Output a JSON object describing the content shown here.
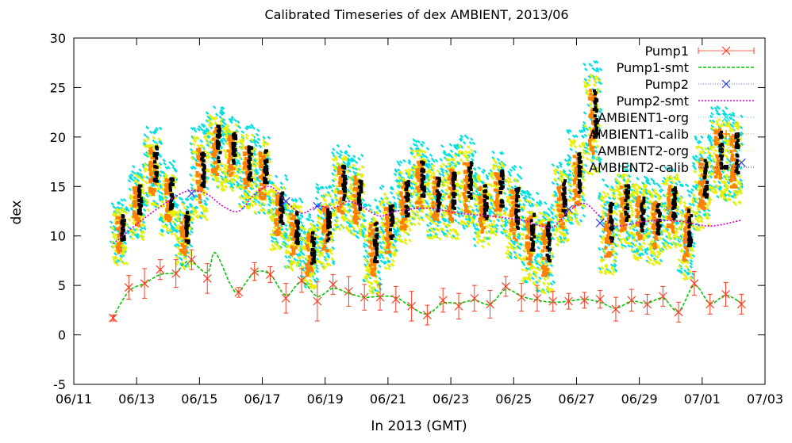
{
  "chart_data": {
    "type": "scatter",
    "title": "Calibrated Timeseries of dex AMBIENT, 2013/06",
    "xlabel": "In 2013 (GMT)",
    "ylabel": "dex",
    "xlim": [
      "2013-06-11",
      "2013-07-03"
    ],
    "ylim": [
      -5,
      30
    ],
    "yticks": [
      -5,
      0,
      5,
      10,
      15,
      20,
      25,
      30
    ],
    "xticks": [
      "06/11",
      "06/13",
      "06/15",
      "06/17",
      "06/19",
      "06/21",
      "06/23",
      "06/25",
      "06/27",
      "06/29",
      "07/01",
      "07/03"
    ],
    "legend_position": "top-right",
    "grid": false,
    "series": [
      {
        "name": "Pump1",
        "color": "#ff3b1f",
        "marker": "x",
        "style": "points-errorbars",
        "x": [
          "2013-06-12 06:00",
          "2013-06-12 18:00",
          "2013-06-13 06:00",
          "2013-06-13 18:00",
          "2013-06-14 06:00",
          "2013-06-14 18:00",
          "2013-06-15 06:00",
          "2013-06-16 06:00",
          "2013-06-16 18:00",
          "2013-06-17 06:00",
          "2013-06-17 18:00",
          "2013-06-18 06:00",
          "2013-06-18 18:00",
          "2013-06-19 06:00",
          "2013-06-19 18:00",
          "2013-06-20 06:00",
          "2013-06-20 18:00",
          "2013-06-21 06:00",
          "2013-06-21 18:00",
          "2013-06-22 06:00",
          "2013-06-22 18:00",
          "2013-06-23 06:00",
          "2013-06-23 18:00",
          "2013-06-24 06:00",
          "2013-06-24 18:00",
          "2013-06-25 06:00",
          "2013-06-25 18:00",
          "2013-06-26 06:00",
          "2013-06-26 18:00",
          "2013-06-27 06:00",
          "2013-06-27 18:00",
          "2013-06-28 06:00",
          "2013-06-28 18:00",
          "2013-06-29 06:00",
          "2013-06-29 18:00",
          "2013-06-30 06:00",
          "2013-06-30 18:00",
          "2013-07-01 06:00",
          "2013-07-01 18:00",
          "2013-07-02 06:00"
        ],
        "y": [
          1.7,
          4.8,
          5.2,
          6.6,
          6.2,
          7.6,
          5.7,
          4.3,
          6.4,
          6.1,
          3.7,
          5.5,
          3.4,
          5.1,
          4.4,
          3.8,
          3.8,
          3.6,
          2.9,
          2.0,
          3.5,
          2.9,
          3.7,
          3.1,
          4.9,
          3.8,
          3.7,
          3.4,
          3.4,
          3.5,
          3.6,
          2.6,
          3.5,
          3.1,
          3.9,
          2.3,
          5.2,
          3.1,
          4.1,
          3.1
        ],
        "yerr": [
          0.3,
          1.2,
          1.5,
          1.0,
          1.4,
          1.0,
          1.5,
          0.5,
          0.9,
          0.8,
          1.5,
          1.2,
          2.0,
          1.0,
          1.5,
          1.3,
          1.3,
          1.3,
          1.5,
          1.0,
          1.2,
          1.3,
          1.3,
          1.4,
          1.0,
          1.4,
          1.3,
          1.0,
          0.8,
          0.8,
          0.9,
          1.2,
          1.1,
          1.0,
          1.0,
          1.0,
          1.2,
          1.0,
          1.2,
          1.0
        ]
      },
      {
        "name": "Pump1-smt",
        "color": "#00c800",
        "style": "dashed-line",
        "x": [
          "2013-06-12 06:00",
          "2013-06-12 18:00",
          "2013-06-13 06:00",
          "2013-06-13 18:00",
          "2013-06-14 06:00",
          "2013-06-14 12:00",
          "2013-06-14 18:00",
          "2013-06-15 06:00",
          "2013-06-15 12:00",
          "2013-06-16 00:00",
          "2013-06-16 06:00",
          "2013-06-16 18:00",
          "2013-06-17 06:00",
          "2013-06-17 18:00",
          "2013-06-18 06:00",
          "2013-06-18 18:00",
          "2013-06-19 06:00",
          "2013-06-19 18:00",
          "2013-06-20 06:00",
          "2013-06-20 18:00",
          "2013-06-21 06:00",
          "2013-06-21 18:00",
          "2013-06-22 06:00",
          "2013-06-22 18:00",
          "2013-06-23 06:00",
          "2013-06-23 18:00",
          "2013-06-24 06:00",
          "2013-06-24 18:00",
          "2013-06-25 06:00",
          "2013-06-25 18:00",
          "2013-06-26 06:00",
          "2013-06-26 18:00",
          "2013-06-27 06:00",
          "2013-06-27 18:00",
          "2013-06-28 06:00",
          "2013-06-28 18:00",
          "2013-06-29 06:00",
          "2013-06-29 18:00",
          "2013-06-30 06:00",
          "2013-06-30 18:00",
          "2013-07-01 06:00",
          "2013-07-01 18:00",
          "2013-07-02 06:00"
        ],
        "y": [
          1.8,
          4.4,
          5.2,
          6.1,
          6.3,
          7.2,
          7.4,
          6.3,
          8.3,
          5.0,
          4.4,
          6.3,
          6.1,
          4.0,
          5.4,
          3.9,
          4.7,
          4.2,
          3.8,
          3.9,
          3.8,
          2.8,
          2.1,
          3.2,
          3.2,
          3.5,
          3.1,
          4.6,
          3.9,
          3.5,
          3.3,
          3.4,
          3.6,
          3.3,
          2.7,
          3.4,
          3.2,
          3.7,
          2.4,
          5.0,
          3.2,
          4.0,
          3.2
        ]
      },
      {
        "name": "Pump2",
        "color": "#1f3cff",
        "marker": "x",
        "style": "points",
        "x": [
          "2013-06-14 18:00",
          "2013-06-17 18:00",
          "2013-06-18 18:00",
          "2013-06-26 18:00",
          "2013-06-27 18:00",
          "2013-07-02 06:00"
        ],
        "y": [
          14.3,
          13.5,
          13.0,
          12.7,
          11.3,
          17.4
        ]
      },
      {
        "name": "Pump2-smt",
        "color": "#d400d4",
        "style": "dotted-line",
        "x": [
          "2013-06-12 06:00",
          "2013-06-13 06:00",
          "2013-06-14 06:00",
          "2013-06-14 18:00",
          "2013-06-15 06:00",
          "2013-06-15 18:00",
          "2013-06-16 06:00",
          "2013-06-16 18:00",
          "2013-06-17 06:00",
          "2013-06-17 18:00",
          "2013-06-18 06:00",
          "2013-06-18 18:00",
          "2013-06-19 06:00",
          "2013-06-19 18:00",
          "2013-06-20 06:00",
          "2013-06-20 18:00",
          "2013-06-21 06:00",
          "2013-06-22 06:00",
          "2013-06-23 06:00",
          "2013-06-24 06:00",
          "2013-06-25 06:00",
          "2013-06-25 18:00",
          "2013-06-26 06:00",
          "2013-06-26 18:00",
          "2013-06-27 06:00",
          "2013-06-27 18:00",
          "2013-06-28 06:00",
          "2013-06-29 06:00",
          "2013-06-30 06:00",
          "2013-07-01 06:00",
          "2013-07-02 06:00"
        ],
        "y": [
          9.2,
          11.8,
          14.0,
          14.6,
          14.2,
          13.0,
          12.5,
          14.2,
          15.0,
          13.5,
          12.3,
          13.0,
          12.8,
          13.5,
          12.8,
          12.0,
          12.5,
          12.8,
          12.3,
          12.0,
          11.6,
          11.1,
          10.9,
          12.5,
          13.3,
          12.0,
          11.0,
          11.5,
          11.5,
          11.0,
          11.6
        ]
      },
      {
        "name": "AMBIENT1-org",
        "color": "#00e0e0",
        "marker": "x",
        "style": "points"
      },
      {
        "name": "AMBIENT1-calib",
        "color": "#ff8000",
        "marker": "+",
        "style": "points"
      },
      {
        "name": "AMBIENT2-org",
        "color": "#e8f000",
        "marker": "x",
        "style": "points"
      },
      {
        "name": "AMBIENT2-calib",
        "color": "#000000",
        "marker": "square",
        "style": "points"
      }
    ],
    "ambient_clusters": {
      "x": [
        "2013-06-12 11:00",
        "2013-06-13 00:00",
        "2013-06-13 12:00",
        "2013-06-14 00:00",
        "2013-06-14 12:00",
        "2013-06-15 00:00",
        "2013-06-15 12:00",
        "2013-06-16 00:00",
        "2013-06-16 12:00",
        "2013-06-17 00:00",
        "2013-06-17 12:00",
        "2013-06-18 00:00",
        "2013-06-18 12:00",
        "2013-06-19 00:00",
        "2013-06-19 12:00",
        "2013-06-20 00:00",
        "2013-06-20 12:00",
        "2013-06-21 00:00",
        "2013-06-21 12:00",
        "2013-06-22 00:00",
        "2013-06-22 12:00",
        "2013-06-23 00:00",
        "2013-06-23 12:00",
        "2013-06-24 00:00",
        "2013-06-24 12:00",
        "2013-06-25 00:00",
        "2013-06-25 12:00",
        "2013-06-26 00:00",
        "2013-06-26 12:00",
        "2013-06-27 00:00",
        "2013-06-27 12:00",
        "2013-06-28 00:00",
        "2013-06-28 12:00",
        "2013-06-29 00:00",
        "2013-06-29 12:00",
        "2013-06-30 00:00",
        "2013-06-30 12:00",
        "2013-07-01 00:00",
        "2013-07-01 12:00",
        "2013-07-02 00:00"
      ],
      "center": [
        10.5,
        13.5,
        17.0,
        14.0,
        10.5,
        16.5,
        19.0,
        18.5,
        17.0,
        16.5,
        12.5,
        10.5,
        8.5,
        11.0,
        15.0,
        14.0,
        9.0,
        11.0,
        13.5,
        15.5,
        14.0,
        14.5,
        15.5,
        13.0,
        14.5,
        12.5,
        10.0,
        9.0,
        13.5,
        16.0,
        22.0,
        11.0,
        13.0,
        12.0,
        11.5,
        13.0,
        10.5,
        15.5,
        18.5,
        18.0
      ],
      "spread": [
        3.0,
        3.5,
        4.0,
        3.5,
        3.5,
        4.5,
        4.0,
        3.5,
        4.0,
        4.0,
        3.5,
        3.5,
        3.5,
        4.0,
        4.0,
        4.0,
        4.5,
        4.0,
        4.0,
        4.0,
        4.0,
        4.5,
        4.5,
        4.0,
        4.0,
        4.5,
        4.5,
        4.5,
        4.0,
        4.5,
        5.5,
        4.5,
        4.0,
        4.0,
        4.0,
        4.0,
        4.5,
        4.5,
        4.5,
        4.5
      ]
    }
  }
}
